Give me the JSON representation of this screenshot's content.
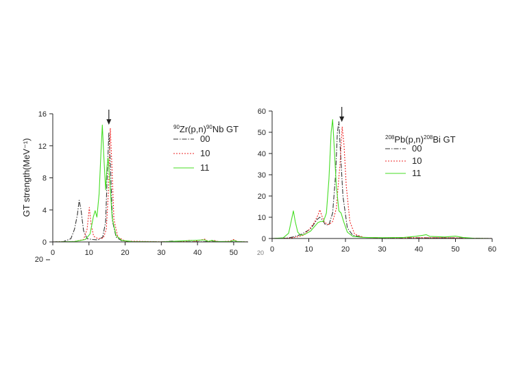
{
  "chart_data": [
    {
      "type": "line",
      "title_parts": {
        "sup1": "90",
        "t1": "Zr(p,n)",
        "sup2": "90",
        "t2": "Nb GT"
      },
      "ylabel": "GT strength(MeV⁻¹)",
      "xlim": [
        0,
        54
      ],
      "ylim": [
        0,
        16
      ],
      "xticks": [
        0,
        10,
        20,
        30,
        40,
        50
      ],
      "yticks": [
        0,
        4,
        8,
        12,
        16
      ],
      "xtick_labels": [
        "0",
        "10",
        "20",
        "30",
        "40",
        "50"
      ],
      "ytick_labels": [
        "0",
        "4",
        "8",
        "12",
        "16"
      ],
      "cut_label": "20",
      "arrow_x": 15.5,
      "series": [
        {
          "name": "00",
          "color": "#333333",
          "style": "dashdot",
          "points": [
            [
              0,
              0
            ],
            [
              3,
              0.05
            ],
            [
              5,
              0.4
            ],
            [
              6,
              1.6
            ],
            [
              6.8,
              3.4
            ],
            [
              7.3,
              5.2
            ],
            [
              7.8,
              4
            ],
            [
              8.5,
              1.4
            ],
            [
              9.5,
              0.4
            ],
            [
              11,
              0.3
            ],
            [
              12.5,
              0.25
            ],
            [
              13.8,
              0.6
            ],
            [
              14.6,
              2.5
            ],
            [
              15.1,
              9
            ],
            [
              15.5,
              13.6
            ],
            [
              15.9,
              10
            ],
            [
              16.5,
              2.6
            ],
            [
              17.5,
              0.6
            ],
            [
              19,
              0.15
            ],
            [
              22,
              0.03
            ],
            [
              30,
              0.01
            ],
            [
              33,
              0.1
            ],
            [
              35,
              0.02
            ],
            [
              42,
              0.03
            ],
            [
              44,
              0.12
            ],
            [
              46,
              0.03
            ],
            [
              54,
              0
            ]
          ]
        },
        {
          "name": "10",
          "color": "#ee2222",
          "style": "dotted",
          "points": [
            [
              0,
              0
            ],
            [
              6,
              0.05
            ],
            [
              8.5,
              0.3
            ],
            [
              9.5,
              1.6
            ],
            [
              10.1,
              4.3
            ],
            [
              10.6,
              2.2
            ],
            [
              11.3,
              0.7
            ],
            [
              12.5,
              0.4
            ],
            [
              14,
              0.5
            ],
            [
              14.8,
              1.6
            ],
            [
              15.4,
              6.5
            ],
            [
              15.9,
              14.2
            ],
            [
              16.3,
              10
            ],
            [
              16.9,
              2.8
            ],
            [
              18,
              0.6
            ],
            [
              20,
              0.1
            ],
            [
              30,
              0.02
            ],
            [
              37,
              0.1
            ],
            [
              38,
              0.25
            ],
            [
              39,
              0.05
            ],
            [
              42,
              0.35
            ],
            [
              43,
              0.05
            ],
            [
              44.5,
              0.2
            ],
            [
              46,
              0.02
            ],
            [
              49,
              0.1
            ],
            [
              50,
              0.3
            ],
            [
              51,
              0.05
            ],
            [
              54,
              0
            ]
          ]
        },
        {
          "name": "11",
          "color": "#44dd22",
          "style": "solid",
          "points": [
            [
              0,
              0
            ],
            [
              6,
              0.05
            ],
            [
              9,
              0.3
            ],
            [
              10.3,
              1
            ],
            [
              11.2,
              3.1
            ],
            [
              11.7,
              3.9
            ],
            [
              12.2,
              3.1
            ],
            [
              12.8,
              6
            ],
            [
              13.3,
              11
            ],
            [
              13.7,
              14.6
            ],
            [
              14.1,
              10.8
            ],
            [
              14.6,
              6.5
            ],
            [
              15,
              9.5
            ],
            [
              15.3,
              10.5
            ],
            [
              15.7,
              8
            ],
            [
              16.4,
              3
            ],
            [
              17.5,
              0.8
            ],
            [
              19,
              0.2
            ],
            [
              22,
              0.03
            ],
            [
              30,
              0.01
            ],
            [
              42,
              0.25
            ],
            [
              43,
              0.05
            ],
            [
              44,
              0.2
            ],
            [
              45,
              0.05
            ],
            [
              49,
              0.05
            ],
            [
              50,
              0.2
            ],
            [
              51,
              0.05
            ],
            [
              54,
              0
            ]
          ]
        }
      ]
    },
    {
      "type": "line",
      "title_parts": {
        "sup1": "208",
        "t1": "Pb(p,n)",
        "sup2": "208",
        "t2": "Bi GT"
      },
      "ylabel": "",
      "xlim": [
        0,
        60
      ],
      "ylim": [
        0,
        60
      ],
      "xticks": [
        0,
        10,
        20,
        30,
        40,
        50,
        60
      ],
      "yticks": [
        0,
        10,
        20,
        30,
        40,
        50,
        60
      ],
      "xtick_labels": [
        "0",
        "10",
        "20",
        "30",
        "40",
        "50",
        "60"
      ],
      "ytick_labels": [
        "0",
        "10",
        "20",
        "30",
        "40",
        "50",
        "60"
      ],
      "cut_label": "20",
      "arrow_x": 19,
      "series": [
        {
          "name": "00",
          "color": "#333333",
          "style": "dashdot",
          "points": [
            [
              0,
              0
            ],
            [
              4,
              0.2
            ],
            [
              6,
              0.8
            ],
            [
              8,
              2
            ],
            [
              9,
              3
            ],
            [
              10.5,
              4.5
            ],
            [
              11.5,
              7
            ],
            [
              12.3,
              9
            ],
            [
              13,
              10
            ],
            [
              13.8,
              8.5
            ],
            [
              14.5,
              6.5
            ],
            [
              15.5,
              6.5
            ],
            [
              16.5,
              12
            ],
            [
              17.3,
              30
            ],
            [
              17.8,
              50
            ],
            [
              18.2,
              55
            ],
            [
              18.6,
              42
            ],
            [
              19.3,
              20
            ],
            [
              20.5,
              5
            ],
            [
              22,
              1.5
            ],
            [
              25,
              0.5
            ],
            [
              30,
              0.3
            ],
            [
              40,
              0.3
            ],
            [
              50,
              0.3
            ],
            [
              55,
              0.1
            ],
            [
              60,
              0
            ]
          ]
        },
        {
          "name": "10",
          "color": "#ee2222",
          "style": "dotted",
          "points": [
            [
              0,
              0
            ],
            [
              5,
              0.2
            ],
            [
              7,
              0.8
            ],
            [
              8.5,
              1.5
            ],
            [
              10,
              4
            ],
            [
              11.5,
              7.5
            ],
            [
              12.5,
              11
            ],
            [
              13,
              13.5
            ],
            [
              13.5,
              11
            ],
            [
              14.3,
              7.5
            ],
            [
              15.5,
              6.5
            ],
            [
              16.5,
              8
            ],
            [
              17.5,
              14
            ],
            [
              18.5,
              35
            ],
            [
              19.1,
              52.5
            ],
            [
              19.6,
              44
            ],
            [
              20.2,
              25
            ],
            [
              21.2,
              8
            ],
            [
              22.5,
              2
            ],
            [
              25,
              0.5
            ],
            [
              30,
              0.3
            ],
            [
              40,
              0.4
            ],
            [
              50,
              0.3
            ],
            [
              55,
              0.1
            ],
            [
              60,
              0
            ]
          ]
        },
        {
          "name": "11",
          "color": "#44dd22",
          "style": "solid",
          "points": [
            [
              0,
              0
            ],
            [
              3,
              0.3
            ],
            [
              4.5,
              2.5
            ],
            [
              5.3,
              9
            ],
            [
              5.8,
              13
            ],
            [
              6.3,
              8
            ],
            [
              7,
              3
            ],
            [
              7.8,
              1.5
            ],
            [
              9,
              2
            ],
            [
              10.5,
              3.5
            ],
            [
              11.5,
              5.5
            ],
            [
              12.5,
              7.5
            ],
            [
              13.2,
              8
            ],
            [
              14,
              8
            ],
            [
              14.8,
              12
            ],
            [
              15.5,
              28
            ],
            [
              16.1,
              50
            ],
            [
              16.5,
              56
            ],
            [
              16.9,
              44
            ],
            [
              17.5,
              25
            ],
            [
              18.2,
              13
            ],
            [
              18.8,
              12
            ],
            [
              19.5,
              8
            ],
            [
              20.5,
              3
            ],
            [
              22,
              1
            ],
            [
              25,
              0.5
            ],
            [
              30,
              0.4
            ],
            [
              36,
              0.5
            ],
            [
              39,
              1
            ],
            [
              41,
              1.5
            ],
            [
              42,
              1.8
            ],
            [
              43,
              1
            ],
            [
              47,
              0.7
            ],
            [
              50,
              1.1
            ],
            [
              52,
              0.5
            ],
            [
              55,
              0.1
            ],
            [
              60,
              0
            ]
          ]
        }
      ]
    }
  ]
}
